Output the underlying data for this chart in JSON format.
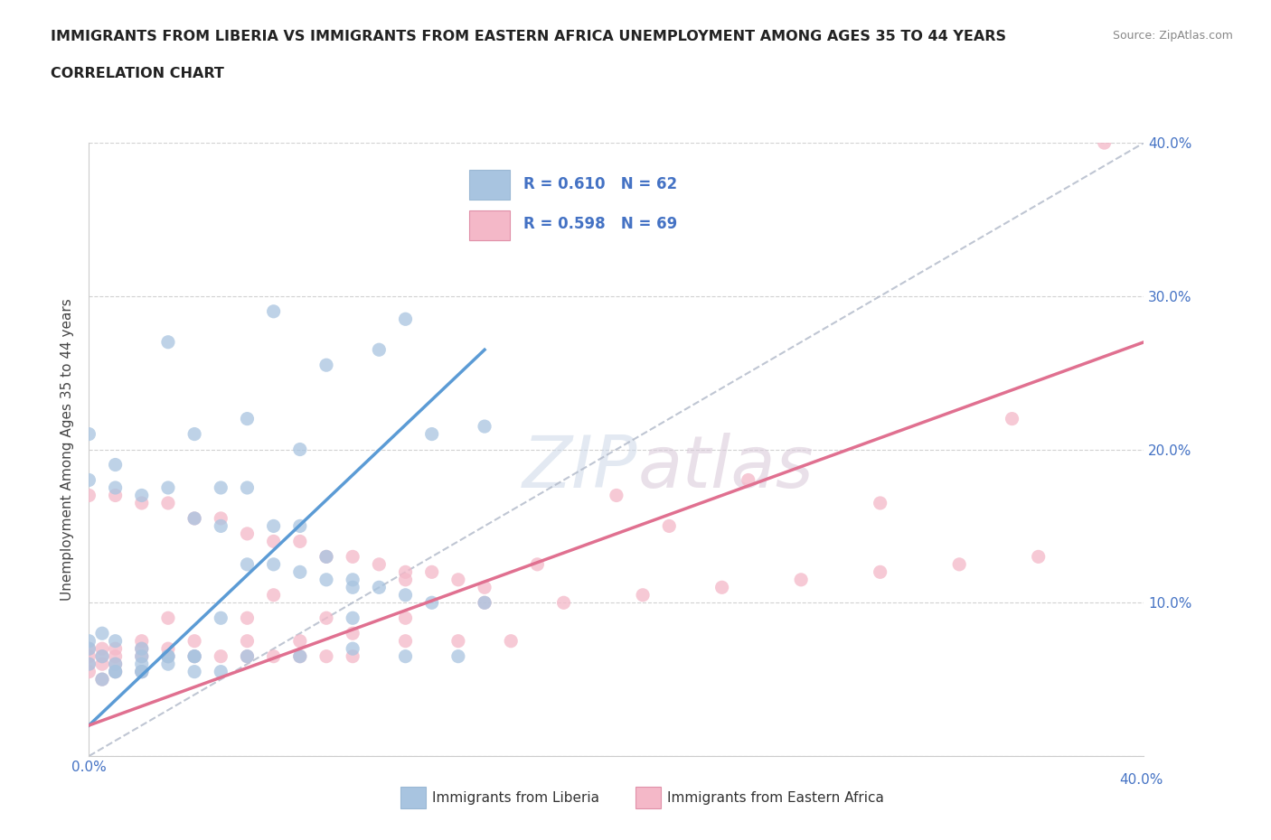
{
  "title_line1": "IMMIGRANTS FROM LIBERIA VS IMMIGRANTS FROM EASTERN AFRICA UNEMPLOYMENT AMONG AGES 35 TO 44 YEARS",
  "title_line2": "CORRELATION CHART",
  "source_text": "Source: ZipAtlas.com",
  "ylabel": "Unemployment Among Ages 35 to 44 years",
  "xlabel_liberia": "Immigrants from Liberia",
  "xlabel_eastern": "Immigrants from Eastern Africa",
  "xlim": [
    0.0,
    0.4
  ],
  "ylim": [
    0.0,
    0.4
  ],
  "x_ticks": [
    0.0,
    0.1,
    0.2,
    0.3,
    0.4
  ],
  "y_ticks": [
    0.0,
    0.1,
    0.2,
    0.3,
    0.4
  ],
  "liberia_color": "#a8c4e0",
  "eastern_color": "#f4b8c8",
  "liberia_line_color": "#5b9bd5",
  "eastern_line_color": "#e07090",
  "diag_line_color": "#b0b8c8",
  "tick_label_color": "#4472c4",
  "R_liberia": 0.61,
  "N_liberia": 62,
  "R_eastern": 0.598,
  "N_eastern": 69,
  "watermark": "ZIPatlas",
  "background_color": "#ffffff",
  "liberia_x": [
    0.005,
    0.0,
    0.01,
    0.02,
    0.03,
    0.01,
    0.02,
    0.0,
    0.0,
    0.005,
    0.01,
    0.02,
    0.03,
    0.04,
    0.005,
    0.01,
    0.02,
    0.03,
    0.04,
    0.05,
    0.0,
    0.01,
    0.0,
    0.01,
    0.02,
    0.03,
    0.04,
    0.05,
    0.06,
    0.07,
    0.08,
    0.09,
    0.1,
    0.05,
    0.06,
    0.07,
    0.08,
    0.09,
    0.1,
    0.11,
    0.12,
    0.13,
    0.04,
    0.06,
    0.08,
    0.1,
    0.12,
    0.14,
    0.05,
    0.1,
    0.15,
    0.03,
    0.07,
    0.12,
    0.08,
    0.06,
    0.09,
    0.11,
    0.13,
    0.15,
    0.04,
    0.02
  ],
  "liberia_y": [
    0.065,
    0.06,
    0.06,
    0.06,
    0.065,
    0.055,
    0.055,
    0.07,
    0.075,
    0.08,
    0.075,
    0.07,
    0.065,
    0.055,
    0.05,
    0.055,
    0.065,
    0.06,
    0.065,
    0.055,
    0.18,
    0.19,
    0.21,
    0.175,
    0.17,
    0.175,
    0.155,
    0.15,
    0.125,
    0.125,
    0.12,
    0.115,
    0.11,
    0.175,
    0.175,
    0.15,
    0.15,
    0.13,
    0.115,
    0.11,
    0.105,
    0.1,
    0.065,
    0.065,
    0.065,
    0.07,
    0.065,
    0.065,
    0.09,
    0.09,
    0.1,
    0.27,
    0.29,
    0.285,
    0.2,
    0.22,
    0.255,
    0.265,
    0.21,
    0.215,
    0.21,
    0.055
  ],
  "eastern_x": [
    0.0,
    0.005,
    0.01,
    0.02,
    0.0,
    0.005,
    0.01,
    0.0,
    0.005,
    0.01,
    0.02,
    0.03,
    0.0,
    0.005,
    0.01,
    0.02,
    0.03,
    0.04,
    0.05,
    0.06,
    0.07,
    0.08,
    0.09,
    0.1,
    0.0,
    0.01,
    0.02,
    0.03,
    0.04,
    0.05,
    0.06,
    0.07,
    0.08,
    0.09,
    0.1,
    0.11,
    0.12,
    0.13,
    0.14,
    0.15,
    0.02,
    0.04,
    0.06,
    0.08,
    0.1,
    0.12,
    0.14,
    0.16,
    0.03,
    0.06,
    0.09,
    0.12,
    0.15,
    0.18,
    0.21,
    0.24,
    0.27,
    0.3,
    0.33,
    0.36,
    0.2,
    0.25,
    0.3,
    0.35,
    0.385,
    0.07,
    0.12,
    0.17,
    0.22
  ],
  "eastern_y": [
    0.055,
    0.05,
    0.055,
    0.055,
    0.06,
    0.06,
    0.06,
    0.065,
    0.065,
    0.065,
    0.065,
    0.065,
    0.07,
    0.07,
    0.07,
    0.07,
    0.07,
    0.065,
    0.065,
    0.065,
    0.065,
    0.065,
    0.065,
    0.065,
    0.17,
    0.17,
    0.165,
    0.165,
    0.155,
    0.155,
    0.145,
    0.14,
    0.14,
    0.13,
    0.13,
    0.125,
    0.12,
    0.12,
    0.115,
    0.11,
    0.075,
    0.075,
    0.075,
    0.075,
    0.08,
    0.075,
    0.075,
    0.075,
    0.09,
    0.09,
    0.09,
    0.09,
    0.1,
    0.1,
    0.105,
    0.11,
    0.115,
    0.12,
    0.125,
    0.13,
    0.17,
    0.18,
    0.165,
    0.22,
    0.4,
    0.105,
    0.115,
    0.125,
    0.15
  ]
}
